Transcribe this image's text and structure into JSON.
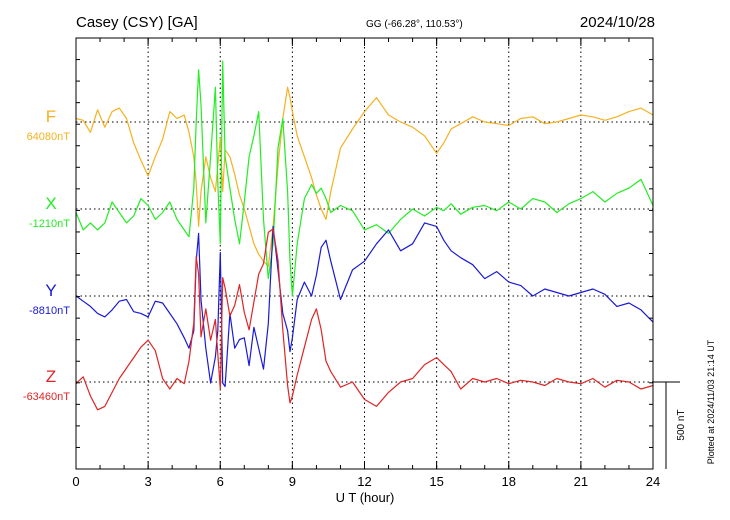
{
  "chart_data": {
    "type": "line",
    "title": "Casey (CSY)  [GA]",
    "subtitle": "GG (-66.28°, 110.53°)",
    "date": "2024/10/28",
    "xlabel": "U T (hour)",
    "xlim": [
      0,
      24
    ],
    "x_ticks": [
      "0",
      "3",
      "6",
      "9",
      "12",
      "15",
      "18",
      "21",
      "24"
    ],
    "scale_label": "500 nT",
    "scale_nT": 500,
    "footer": "Plotted at 2024/11/03 21:14 UT",
    "grid": true,
    "series": [
      {
        "name": "F",
        "baseline_label": "64080nT",
        "color": "#f5b120",
        "x": [
          0,
          0.3,
          0.6,
          0.9,
          1.2,
          1.5,
          1.8,
          2.1,
          2.4,
          2.7,
          3,
          3.3,
          3.6,
          3.9,
          4.2,
          4.5,
          4.7,
          4.9,
          5,
          5.1,
          5.2,
          5.4,
          5.6,
          5.8,
          5.9,
          6,
          6.1,
          6.2,
          6.4,
          6.6,
          6.8,
          7,
          7.2,
          7.4,
          7.6,
          7.8,
          8,
          8.2,
          8.4,
          8.6,
          8.8,
          8.9,
          9,
          9.2,
          9.5,
          9.8,
          10,
          10.2,
          10.4,
          10.6,
          11,
          11.5,
          12,
          12.5,
          13,
          13.5,
          14,
          14.5,
          15,
          15.3,
          15.6,
          16,
          16.5,
          17,
          17.5,
          18,
          18.5,
          19,
          19.5,
          20,
          20.5,
          21,
          21.5,
          22,
          22.5,
          23,
          23.5,
          24
        ],
        "values": [
          20,
          10,
          -60,
          70,
          -30,
          60,
          80,
          20,
          -120,
          -220,
          -310,
          -200,
          -100,
          60,
          20,
          40,
          -60,
          -200,
          -350,
          -600,
          -400,
          -200,
          -320,
          -400,
          -250,
          -90,
          -400,
          -160,
          -200,
          -300,
          -420,
          -500,
          -600,
          -700,
          -760,
          -800,
          -830,
          -600,
          -250,
          20,
          200,
          140,
          60,
          -80,
          -200,
          -320,
          -420,
          -500,
          -560,
          -400,
          -150,
          -40,
          60,
          140,
          40,
          0,
          -30,
          -80,
          -180,
          -120,
          -40,
          -10,
          30,
          0,
          -10,
          -20,
          20,
          30,
          -10,
          0,
          20,
          40,
          30,
          10,
          30,
          60,
          80,
          40
        ]
      },
      {
        "name": "X",
        "baseline_label": "-1210nT",
        "color": "#22ee22",
        "x": [
          0,
          0.3,
          0.6,
          0.9,
          1.2,
          1.5,
          1.8,
          2.1,
          2.4,
          2.7,
          3,
          3.3,
          3.6,
          3.9,
          4.2,
          4.5,
          4.7,
          4.9,
          5,
          5.1,
          5.2,
          5.4,
          5.6,
          5.8,
          5.9,
          6,
          6.1,
          6.2,
          6.4,
          6.6,
          6.8,
          7,
          7.2,
          7.4,
          7.6,
          7.8,
          8,
          8.2,
          8.4,
          8.6,
          8.8,
          8.9,
          9,
          9.2,
          9.5,
          9.8,
          10,
          10.2,
          10.4,
          10.6,
          11,
          11.5,
          12,
          12.5,
          13,
          13.5,
          14,
          14.5,
          15,
          15.3,
          15.6,
          16,
          16.5,
          17,
          17.5,
          18,
          18.5,
          19,
          19.5,
          20,
          20.5,
          21,
          21.5,
          22,
          22.5,
          23,
          23.5,
          24
        ],
        "values": [
          -20,
          -120,
          -80,
          -120,
          -80,
          40,
          -20,
          -80,
          -40,
          60,
          20,
          -60,
          -20,
          40,
          -60,
          -120,
          -160,
          120,
          500,
          800,
          600,
          -80,
          300,
          700,
          150,
          -200,
          850,
          300,
          120,
          -60,
          -200,
          40,
          300,
          420,
          560,
          -60,
          -400,
          -200,
          350,
          520,
          100,
          -300,
          -500,
          -200,
          60,
          140,
          90,
          120,
          60,
          -20,
          20,
          -10,
          -120,
          -90,
          -140,
          -60,
          0,
          -40,
          10,
          -10,
          30,
          -30,
          10,
          20,
          -10,
          40,
          0,
          60,
          40,
          -20,
          30,
          60,
          100,
          40,
          90,
          120,
          170,
          20
        ]
      },
      {
        "name": "Y",
        "baseline_label": "-8810nT",
        "color": "#1a1ad6",
        "x": [
          0,
          0.3,
          0.6,
          0.9,
          1.2,
          1.5,
          1.8,
          2.1,
          2.4,
          2.7,
          3,
          3.3,
          3.6,
          3.9,
          4.2,
          4.5,
          4.7,
          4.9,
          5,
          5.1,
          5.2,
          5.4,
          5.6,
          5.8,
          5.9,
          6,
          6.1,
          6.2,
          6.4,
          6.6,
          6.8,
          7,
          7.2,
          7.4,
          7.6,
          7.8,
          8,
          8.2,
          8.4,
          8.6,
          8.8,
          8.9,
          9,
          9.2,
          9.5,
          9.8,
          10,
          10.2,
          10.4,
          10.6,
          11,
          11.5,
          12,
          12.5,
          13,
          13.5,
          14,
          14.5,
          15,
          15.3,
          15.6,
          16,
          16.5,
          17,
          17.5,
          18,
          18.5,
          19,
          19.5,
          20,
          20.5,
          21,
          21.5,
          22,
          22.5,
          23,
          23.5,
          24
        ],
        "values": [
          0,
          -30,
          -60,
          -100,
          -120,
          -80,
          -30,
          -20,
          -90,
          -100,
          -120,
          -30,
          -40,
          -100,
          -160,
          -240,
          -300,
          -200,
          200,
          360,
          -20,
          -300,
          -500,
          -350,
          -200,
          250,
          -500,
          -520,
          -100,
          -300,
          -250,
          -240,
          -400,
          -180,
          -300,
          -420,
          -160,
          400,
          150,
          -100,
          -200,
          -320,
          -240,
          -20,
          80,
          0,
          120,
          280,
          320,
          200,
          -20,
          150,
          200,
          300,
          380,
          260,
          300,
          420,
          400,
          320,
          260,
          220,
          180,
          100,
          140,
          80,
          60,
          0,
          40,
          20,
          0,
          20,
          40,
          10,
          -60,
          -40,
          -80,
          -150
        ]
      },
      {
        "name": "Z",
        "baseline_label": "-63460nT",
        "color": "#e02424",
        "x": [
          0,
          0.3,
          0.6,
          0.9,
          1.2,
          1.5,
          1.8,
          2.1,
          2.4,
          2.7,
          3,
          3.3,
          3.6,
          3.9,
          4.2,
          4.5,
          4.7,
          4.9,
          5,
          5.1,
          5.2,
          5.4,
          5.6,
          5.8,
          5.9,
          6,
          6.1,
          6.2,
          6.4,
          6.6,
          6.8,
          7,
          7.2,
          7.4,
          7.6,
          7.8,
          8,
          8.2,
          8.4,
          8.6,
          8.8,
          8.9,
          9,
          9.2,
          9.5,
          9.8,
          10,
          10.2,
          10.4,
          10.6,
          11,
          11.5,
          12,
          12.5,
          13,
          13.5,
          14,
          14.5,
          15,
          15.3,
          15.6,
          16,
          16.5,
          17,
          17.5,
          18,
          18.5,
          19,
          19.5,
          20,
          20.5,
          21,
          21.5,
          22,
          22.5,
          23,
          23.5,
          24
        ],
        "values": [
          -10,
          30,
          -80,
          -160,
          -140,
          -60,
          20,
          80,
          140,
          200,
          240,
          180,
          20,
          -40,
          20,
          -10,
          120,
          340,
          720,
          620,
          260,
          420,
          240,
          360,
          160,
          -40,
          600,
          540,
          380,
          440,
          560,
          400,
          300,
          460,
          620,
          680,
          860,
          880,
          700,
          300,
          -20,
          -120,
          -80,
          40,
          200,
          360,
          420,
          300,
          120,
          60,
          -30,
          0,
          -100,
          -140,
          -60,
          0,
          20,
          100,
          140,
          100,
          60,
          -40,
          20,
          0,
          20,
          -10,
          10,
          0,
          -20,
          20,
          0,
          -10,
          20,
          -30,
          10,
          0,
          -40,
          -20
        ]
      }
    ]
  }
}
